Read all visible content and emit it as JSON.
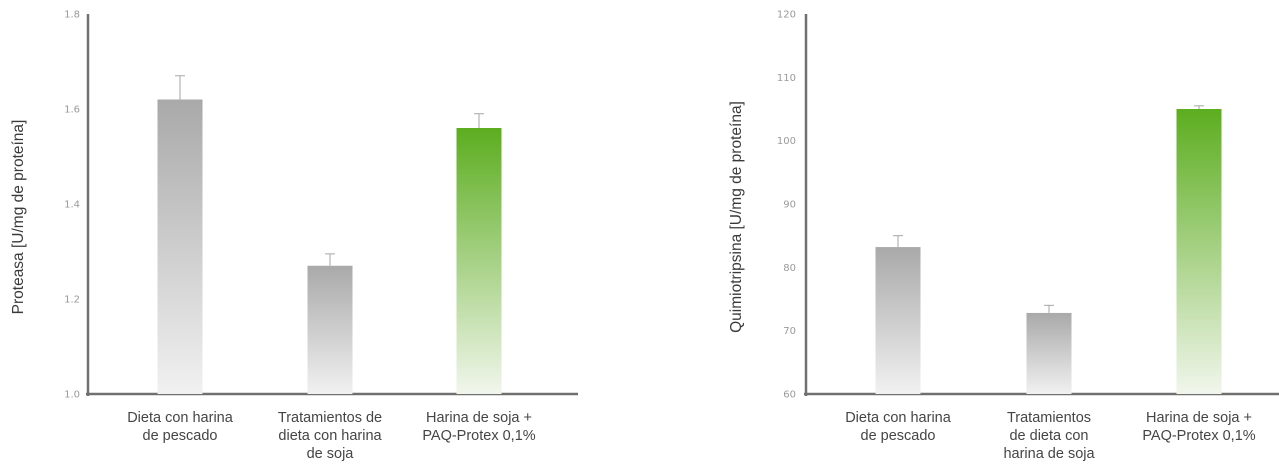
{
  "colors": {
    "axis": "#707070",
    "gray_top": "#a9a9a9",
    "gray_bottom": "#f1f1f1",
    "green_top": "#5cad1f",
    "green_bottom": "#f1f6ec",
    "error_bar": "#a6a6a6"
  },
  "chart_data": [
    {
      "type": "bar",
      "ylabel": "Proteasa [U/mg de proteína]",
      "ylim": [
        1.0,
        1.8
      ],
      "yticks": [
        "1.0",
        "1.2",
        "1.4",
        "1.6",
        "1.8"
      ],
      "categories": [
        [
          "Dieta con harina",
          "de pescado"
        ],
        [
          "Tratamientos de",
          "dieta con harina",
          "de soja"
        ],
        [
          "Harina de soja +",
          "PAQ-Protex 0,1%"
        ]
      ],
      "values": [
        1.62,
        1.27,
        1.56
      ],
      "errors": [
        0.05,
        0.025,
        0.03
      ],
      "bar_colors": [
        "gray",
        "gray",
        "green"
      ]
    },
    {
      "type": "bar",
      "ylabel": "Quimiotripsina [U/mg de proteína]",
      "ylim": [
        60,
        120
      ],
      "yticks": [
        "60",
        "70",
        "80",
        "90",
        "100",
        "110",
        "120"
      ],
      "categories": [
        [
          "Dieta con harina",
          "de pescado"
        ],
        [
          "Tratamientos",
          "de dieta con",
          "harina de soja"
        ],
        [
          "Harina de soja +",
          "PAQ-Protex 0,1%"
        ]
      ],
      "values": [
        83.2,
        72.8,
        105.0
      ],
      "errors": [
        1.8,
        1.2,
        0.5
      ],
      "bar_colors": [
        "gray",
        "gray",
        "green"
      ]
    }
  ]
}
